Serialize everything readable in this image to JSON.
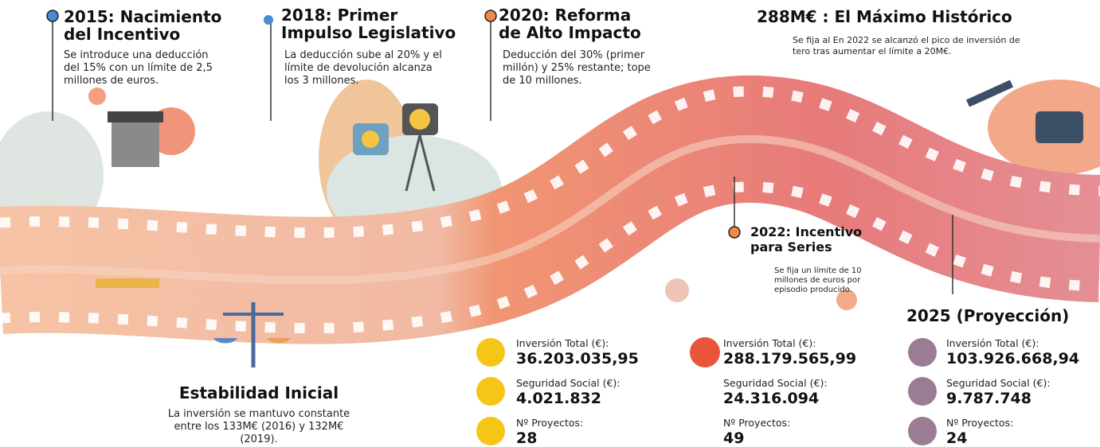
{
  "milestones": [
    {
      "title": "2015: Nacimiento del Incentivo",
      "text": "Se introduce una deducción del 15% con un límite de 2,5 millones de euros."
    },
    {
      "title": "2018: Primer Impulso Legislativo",
      "text": "La deducción sube al 20% y el límite de devolución alcanza los 3 millones."
    },
    {
      "title": "2020: Reforma de Alto Impacto",
      "text": "Deducción del 30% (primer millón) y 25% restante; tope de 10 millones."
    },
    {
      "title": "288M€ : El Máximo Histórico",
      "text": "Se fija al  En 2022 se alcanzó el pico de inversión de tero  tras aumentar el límite a 20M€."
    },
    {
      "title": "2022: Incentivo para Series",
      "text": "Se fija un límite de 10 millones de euros por episodio producido."
    },
    {
      "title": "Estabilidad Inicial",
      "text": "La inversión se mantuvo constante entre los 133M€ (2016) y 132M€ (2019)."
    },
    {
      "title": "2025 (Proyección)"
    }
  ],
  "stats": [
    {
      "items": [
        {
          "label": "Inversión Total (€):",
          "value": "36.203.035,95"
        },
        {
          "label": "Seguridad Social (€):",
          "value": "4.021.832"
        },
        {
          "label": "Nº Proyectos:",
          "value": "28"
        }
      ]
    },
    {
      "items": [
        {
          "label": "Inversión Total (€):",
          "value": "288.179.565,99"
        },
        {
          "label": "Seguridad Social (€):",
          "value": "24.316.094"
        },
        {
          "label": "Nº Proyectos:",
          "value": "49"
        }
      ]
    },
    {
      "items": [
        {
          "label": "Inversión Total (€):",
          "value": "103.926.668,94"
        },
        {
          "label": "Seguridad Social (€):",
          "value": "9.787.748"
        },
        {
          "label": "Nº Proyectos:",
          "value": "24"
        }
      ]
    }
  ]
}
